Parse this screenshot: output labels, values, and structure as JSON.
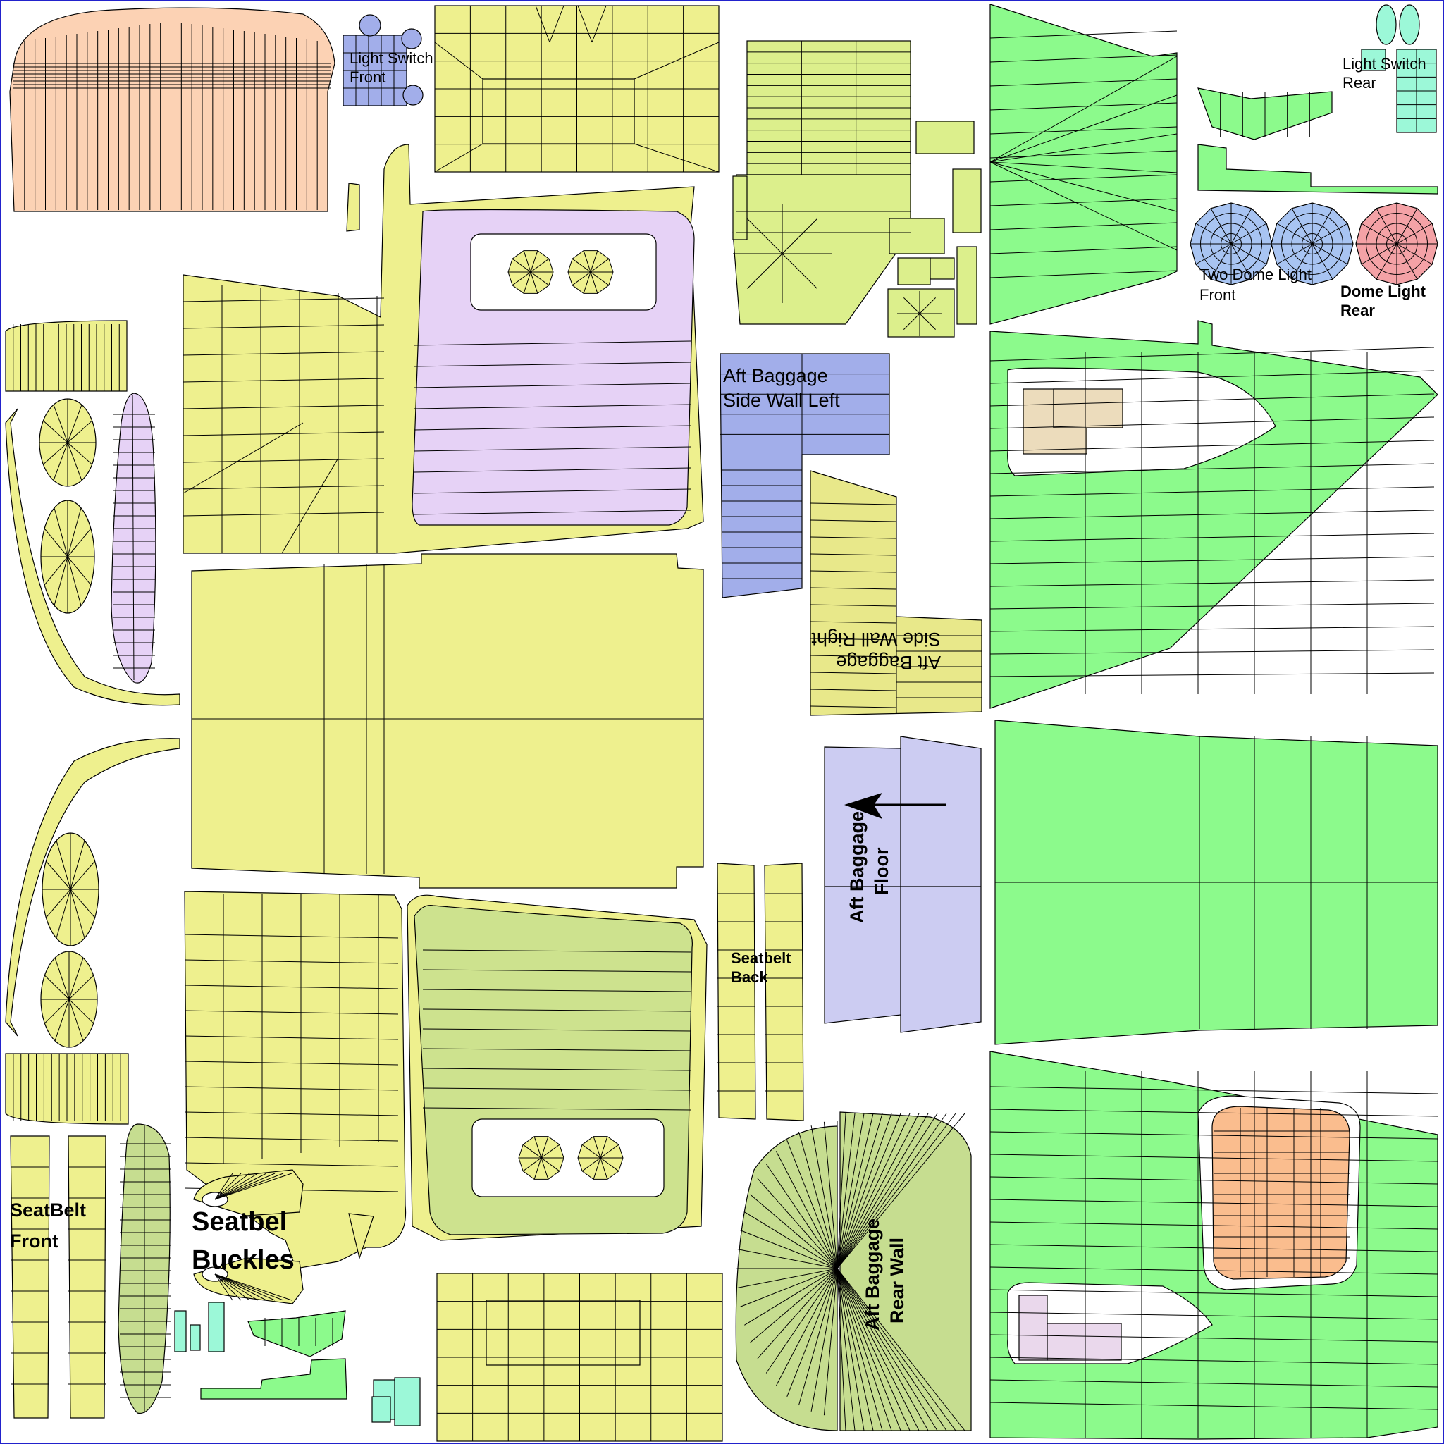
{
  "labels": {
    "light_switch_front": [
      "Light Switch",
      "Front"
    ],
    "light_switch_rear": [
      "Light Switch",
      "Rear"
    ],
    "two_dome_light_front": [
      "Two Dome Light",
      "Front"
    ],
    "dome_light_rear": [
      "Dome Light",
      "Rear"
    ],
    "aft_baggage_side_wall_left": [
      "Aft Baggage",
      "Side Wall Left"
    ],
    "aft_baggage_side_wall_right": [
      "Aft Baggage",
      "Side Wall Right"
    ],
    "aft_baggage_floor": [
      "Aft Baggage",
      "Floor"
    ],
    "seatbelt_back": [
      "Seatbelt",
      "Back"
    ],
    "seatbelt_front": [
      "SeatBelt",
      "Front"
    ],
    "seatbelt_buckles": [
      "Seatbel",
      "Buckles"
    ],
    "aft_baggage_rear_wall": [
      "Aft Baggage",
      "Rear Wall"
    ]
  },
  "colors": {
    "peach": "#fcd2b4",
    "yellow": "#eef08e",
    "yellow_green": "#dcef8c",
    "lilac": "#e6d2f6",
    "blue": "#a2aeea",
    "blue_light": "#a8c4f2",
    "green": "#8cfa8c",
    "mint": "#9cf8d8",
    "pink": "#f4a2a6",
    "olive": "#c6dd90",
    "orange": "#fabd8e",
    "tan": "#ecdcbc",
    "floor_lilac": "#ccccf2",
    "light_pink": "#ead8ec",
    "border": "#2222cc"
  }
}
